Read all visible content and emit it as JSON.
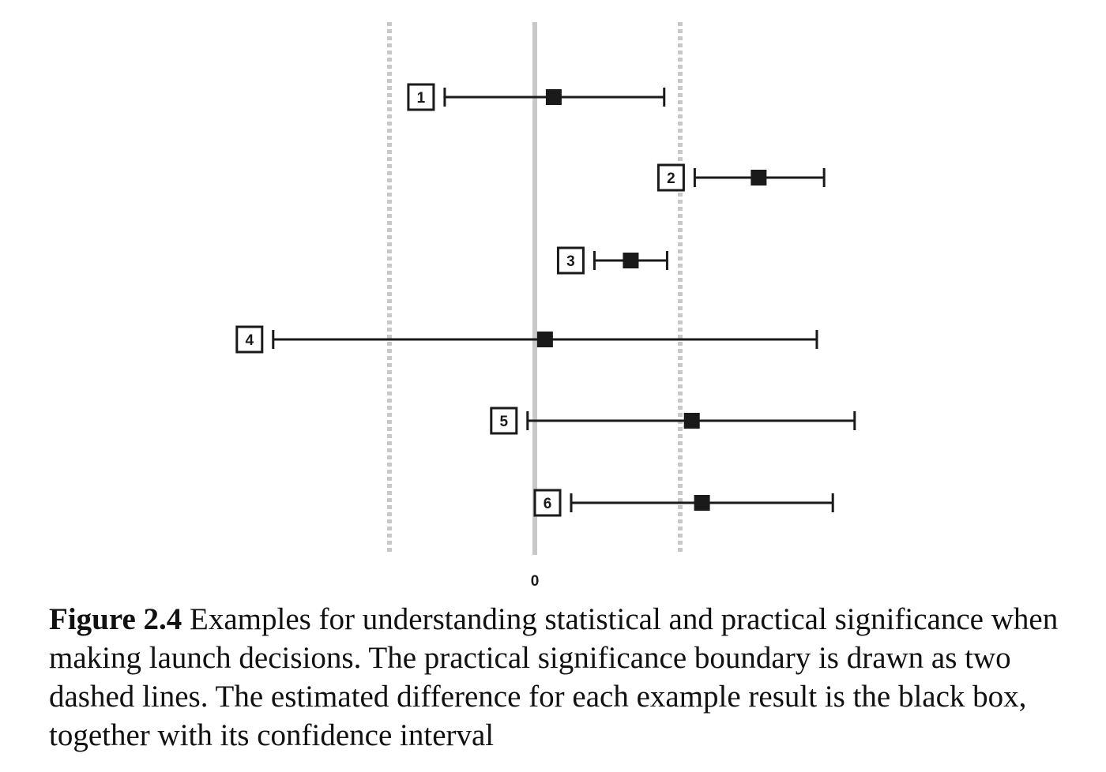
{
  "chart_data": {
    "type": "forest",
    "zero_label": "0",
    "reference_line": 0,
    "practical_boundaries": [
      -1,
      1
    ],
    "xlim": [
      -2,
      2
    ],
    "x_ticks": [
      "0"
    ],
    "examples": [
      {
        "label": "1",
        "estimate": 0.13,
        "lower": -0.62,
        "upper": 0.89
      },
      {
        "label": "2",
        "estimate": 1.54,
        "lower": 1.1,
        "upper": 1.99
      },
      {
        "label": "3",
        "estimate": 0.66,
        "lower": 0.41,
        "upper": 0.91
      },
      {
        "label": "4",
        "estimate": 0.07,
        "lower": -1.8,
        "upper": 1.94
      },
      {
        "label": "5",
        "estimate": 1.08,
        "lower": -0.05,
        "upper": 2.2
      },
      {
        "label": "6",
        "estimate": 1.15,
        "lower": 0.25,
        "upper": 2.05
      }
    ],
    "colors": {
      "zero_line": "#c8c8c8",
      "boundary": "#c8c8c8",
      "marker": "#1a1a1a",
      "interval": "#1a1a1a"
    }
  },
  "caption": {
    "label": "Figure 2.4",
    "text": " Examples for understanding statistical and practical significance when making launch decisions. The practical significance boundary is drawn as two dashed lines. The estimated difference for each example result is the black box, together with its confidence interval"
  }
}
